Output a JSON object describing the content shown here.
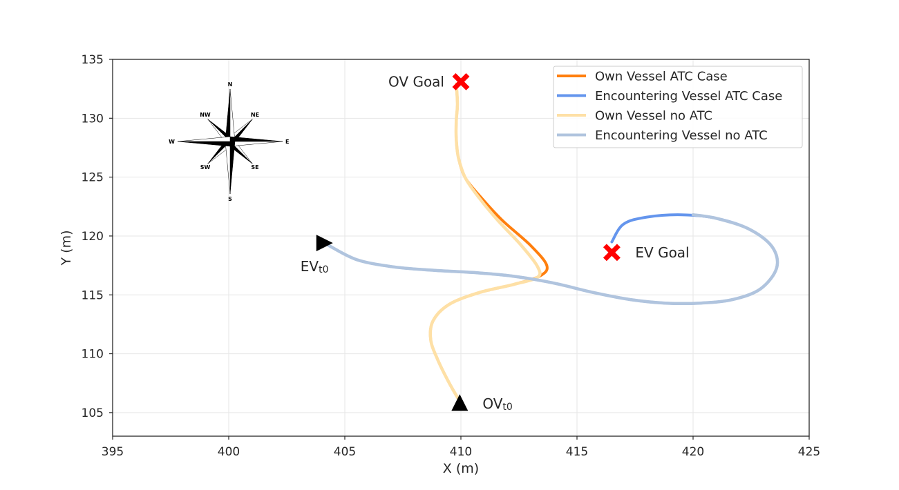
{
  "chart_data": {
    "type": "line",
    "title": "",
    "xlabel": "X (m)",
    "ylabel": "Y (m)",
    "xlim": [
      395,
      425
    ],
    "ylim": [
      103,
      135
    ],
    "xticks": [
      395,
      400,
      405,
      410,
      415,
      420,
      425
    ],
    "yticks": [
      105,
      110,
      115,
      120,
      125,
      130,
      135
    ],
    "grid": true,
    "legend_position": "top-right",
    "series": [
      {
        "key": "ov_atc",
        "name": "Own Vessel ATC Case",
        "color": "#ff7f0e",
        "x": [
          410.0,
          409.5,
          409.0,
          408.7,
          408.8,
          409.5,
          410.8,
          412.3,
          413.4,
          413.7,
          413.0,
          411.8,
          410.9,
          410.2,
          409.9,
          409.8,
          409.8,
          409.85,
          409.8
        ],
        "y": [
          105.8,
          107.5,
          109.5,
          111.2,
          112.8,
          114.2,
          115.2,
          115.9,
          116.6,
          117.5,
          119.2,
          121.3,
          123.2,
          124.9,
          126.6,
          128.2,
          129.8,
          131.2,
          132.9
        ]
      },
      {
        "key": "ev_atc",
        "name": "Encountering Vessel ATC Case",
        "color": "#6495ed",
        "x": [
          404.3,
          405.5,
          407.0,
          408.7,
          410.5,
          412.2,
          414.0,
          415.7,
          417.3,
          418.8,
          420.3,
          421.7,
          422.9,
          423.6,
          423.4,
          422.4,
          421.0,
          419.5,
          418.0,
          417.0,
          416.5
        ],
        "y": [
          119.2,
          118.0,
          117.4,
          117.1,
          116.9,
          116.6,
          116.0,
          115.2,
          114.6,
          114.3,
          114.3,
          114.6,
          115.5,
          117.3,
          119.1,
          120.6,
          121.5,
          121.8,
          121.6,
          121.0,
          119.5
        ]
      },
      {
        "key": "ov_noatc",
        "name": "Own Vessel no ATC",
        "color": "#fee0a6",
        "x": [
          410.0,
          409.5,
          409.0,
          408.7,
          408.8,
          409.5,
          410.8,
          412.3,
          413.3,
          413.3,
          412.6,
          411.6,
          410.8,
          410.2,
          409.9,
          409.8,
          409.8,
          409.85,
          409.8
        ],
        "y": [
          105.8,
          107.5,
          109.5,
          111.2,
          112.8,
          114.2,
          115.2,
          115.9,
          116.5,
          117.4,
          119.2,
          121.3,
          123.2,
          124.9,
          126.6,
          128.2,
          129.8,
          131.2,
          132.9
        ]
      },
      {
        "key": "ev_noatc",
        "name": "Encountering Vessel no ATC",
        "color": "#b0c4de",
        "x": [
          404.3,
          405.5,
          407.0,
          408.7,
          410.5,
          412.2,
          414.0,
          415.7,
          417.3,
          418.8,
          420.3,
          421.7,
          422.9,
          423.6,
          423.4,
          422.4,
          421.0,
          420.0
        ],
        "y": [
          119.2,
          118.0,
          117.4,
          117.1,
          116.9,
          116.6,
          116.0,
          115.2,
          114.6,
          114.3,
          114.3,
          114.6,
          115.5,
          117.3,
          119.1,
          120.6,
          121.5,
          121.8
        ]
      }
    ],
    "markers": [
      {
        "key": "ov_start",
        "shape": "triangle-up",
        "color": "#000000",
        "x": 409.95,
        "y": 105.8
      },
      {
        "key": "ev_start",
        "shape": "triangle-right",
        "color": "#000000",
        "x": 404.1,
        "y": 119.4
      },
      {
        "key": "ov_goal",
        "shape": "x",
        "color": "#ff0000",
        "x": 410.0,
        "y": 133.1
      },
      {
        "key": "ev_goal",
        "shape": "x",
        "color": "#ff0000",
        "x": 416.5,
        "y": 118.6
      }
    ],
    "annotations": [
      {
        "key": "ov_goal_label",
        "text": "OV Goal",
        "anchor": "ov_goal",
        "side": "left"
      },
      {
        "key": "ev_goal_label",
        "text": "EV Goal",
        "anchor": "ev_goal",
        "side": "right"
      },
      {
        "key": "ov_start_label",
        "base": "OV",
        "sub": "t0",
        "anchor": "ov_start",
        "side": "right"
      },
      {
        "key": "ev_start_label",
        "base": "EV",
        "sub": "t0",
        "anchor": "ev_start",
        "side": "below"
      }
    ],
    "compass": {
      "labels": {
        "n": "N",
        "ne": "NE",
        "e": "E",
        "se": "SE",
        "s": "S",
        "sw": "SW",
        "w": "W",
        "nw": "NW"
      }
    }
  }
}
